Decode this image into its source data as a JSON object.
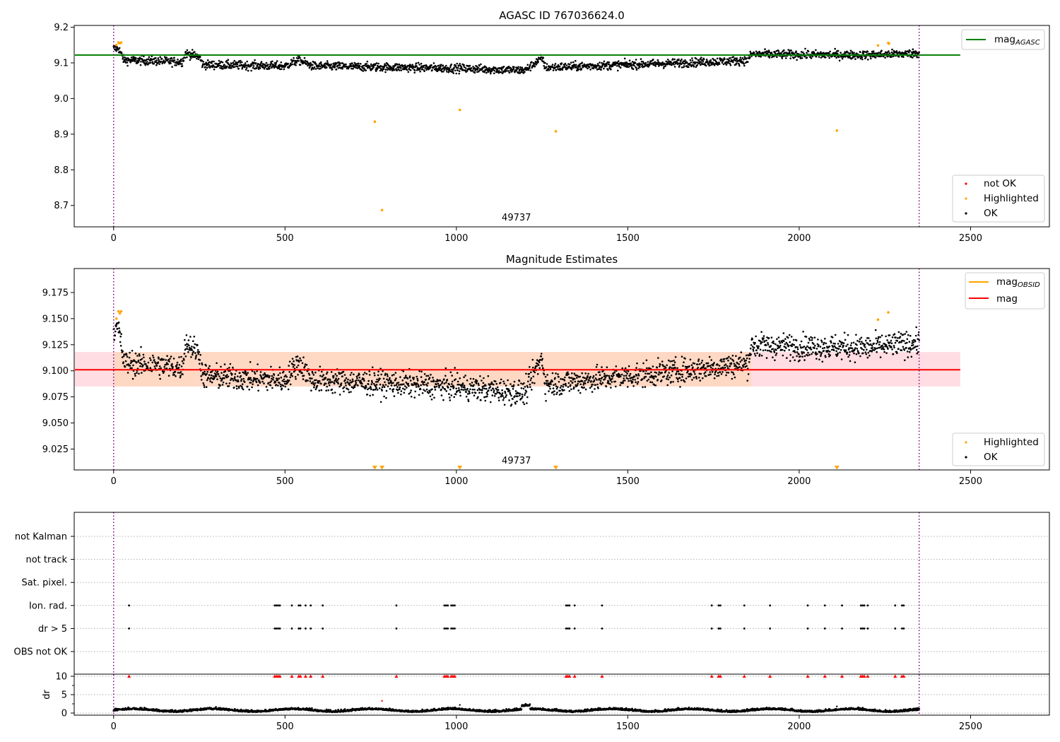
{
  "chart_data": [
    {
      "type": "scatter",
      "title": "AGASC ID 767036624.0",
      "xlim": [
        -115,
        2730
      ],
      "ylim": [
        8.64,
        9.205
      ],
      "xticks": [
        0,
        500,
        1000,
        1500,
        2000,
        2500
      ],
      "yticks": [
        8.7,
        8.8,
        8.9,
        9.0,
        9.1,
        9.2
      ],
      "ytick_labels": [
        "8.7",
        "8.8",
        "8.9",
        "9.0",
        "9.1",
        "9.2"
      ],
      "annotation": {
        "text": "49737",
        "x": 1175
      },
      "vlines": [
        0,
        2350
      ],
      "hline": {
        "name": "mag",
        "subscript": "AGASC",
        "y": 9.122,
        "x_range": [
          -115,
          2470
        ],
        "color": "#008000"
      },
      "ok_trend": {
        "segments": [
          [
            0,
            9.14
          ],
          [
            15,
            9.14
          ],
          [
            30,
            9.108
          ],
          [
            200,
            9.103
          ],
          [
            210,
            9.127
          ],
          [
            250,
            9.117
          ],
          [
            260,
            9.095
          ],
          [
            500,
            9.091
          ],
          [
            540,
            9.108
          ],
          [
            580,
            9.091
          ],
          [
            1000,
            9.085
          ],
          [
            1200,
            9.079
          ],
          [
            1230,
            9.1
          ],
          [
            1250,
            9.113
          ],
          [
            1260,
            9.087
          ],
          [
            1500,
            9.095
          ],
          [
            1600,
            9.098
          ],
          [
            1850,
            9.107
          ],
          [
            1860,
            9.124
          ],
          [
            2200,
            9.122
          ],
          [
            2350,
            9.127
          ]
        ],
        "noise": 0.011,
        "count": 2300
      },
      "highlighted": [
        [
          8,
          9.15
        ],
        [
          14,
          9.157
        ],
        [
          18,
          9.155
        ],
        [
          22,
          9.157
        ],
        [
          762,
          8.935
        ],
        [
          783,
          8.687
        ],
        [
          1010,
          8.968
        ],
        [
          1290,
          8.908
        ],
        [
          2110,
          8.91
        ],
        [
          2230,
          9.149
        ],
        [
          2260,
          9.156
        ],
        [
          2262,
          9.154
        ]
      ],
      "not_ok": [],
      "legend_lines": [
        {
          "label": "mag",
          "subscript": "AGASC",
          "color": "#008000"
        }
      ],
      "legend_points": [
        {
          "label": "not OK",
          "color": "#ff0000"
        },
        {
          "label": "Highlighted",
          "color": "#ffa500"
        },
        {
          "label": "OK",
          "color": "#000000"
        }
      ]
    },
    {
      "type": "scatter",
      "title": "Magnitude Estimates",
      "xlim": [
        -115,
        2730
      ],
      "ylim": [
        9.005,
        9.198
      ],
      "xticks": [
        0,
        500,
        1000,
        1500,
        2000,
        2500
      ],
      "yticks": [
        9.025,
        9.05,
        9.075,
        9.1,
        9.125,
        9.15,
        9.175
      ],
      "ytick_labels": [
        "9.025",
        "9.050",
        "9.075",
        "9.100",
        "9.125",
        "9.150",
        "9.175"
      ],
      "annotation": {
        "text": "49737",
        "x": 1175
      },
      "vlines": [
        0,
        2350
      ],
      "mag_line": {
        "y": 9.101,
        "x_range": [
          -115,
          2470
        ],
        "color": "#ff0000"
      },
      "band_outer": {
        "y_range": [
          9.085,
          9.118
        ],
        "x_range": [
          -115,
          2470
        ],
        "color": "#ffdde3"
      },
      "band_inner": {
        "y_range": [
          9.085,
          9.118
        ],
        "x_range": [
          0,
          1860
        ],
        "color": "#ffd8c4"
      },
      "mag_obsid_segments": [],
      "ok_trend": {
        "segments": [
          [
            0,
            9.14
          ],
          [
            15,
            9.14
          ],
          [
            30,
            9.108
          ],
          [
            200,
            9.103
          ],
          [
            210,
            9.127
          ],
          [
            250,
            9.117
          ],
          [
            260,
            9.095
          ],
          [
            500,
            9.091
          ],
          [
            540,
            9.108
          ],
          [
            580,
            9.091
          ],
          [
            1000,
            9.085
          ],
          [
            1200,
            9.079
          ],
          [
            1230,
            9.1
          ],
          [
            1250,
            9.113
          ],
          [
            1260,
            9.087
          ],
          [
            1500,
            9.095
          ],
          [
            1600,
            9.098
          ],
          [
            1850,
            9.107
          ],
          [
            1860,
            9.124
          ],
          [
            2200,
            9.122
          ],
          [
            2350,
            9.127
          ]
        ],
        "noise": 0.011,
        "count": 2300
      },
      "highlighted": [
        [
          8,
          9.15
        ],
        [
          14,
          9.157
        ],
        [
          18,
          9.155
        ],
        [
          22,
          9.157
        ],
        [
          2230,
          9.149
        ],
        [
          2260,
          9.156
        ]
      ],
      "off_scale_low": [
        762,
        783,
        1010,
        1290,
        2110
      ],
      "legend_lines": [
        {
          "label": "mag",
          "subscript": "OBSID",
          "color": "#ffa500"
        },
        {
          "label": "mag",
          "subscript": "",
          "color": "#ff0000"
        }
      ],
      "legend_points": [
        {
          "label": "Highlighted",
          "color": "#ffa500"
        },
        {
          "label": "OK",
          "color": "#000000"
        }
      ]
    },
    {
      "type": "scatter",
      "title": "",
      "xlim": [
        -115,
        2730
      ],
      "categories": [
        "OBS not OK",
        "dr > 5",
        "Ion. rad.",
        "Sat. pixel.",
        "not track",
        "not Kalman"
      ],
      "flag_x": [
        45,
        470,
        475,
        480,
        485,
        520,
        540,
        545,
        560,
        575,
        610,
        825,
        965,
        970,
        975,
        985,
        990,
        995,
        1320,
        1325,
        1330,
        1345,
        1425,
        1745,
        1765,
        1770,
        1840,
        1915,
        2025,
        2075,
        2125,
        2180,
        2185,
        2190,
        2200,
        2280,
        2300,
        2305
      ],
      "flag_rows": [
        "dr > 5",
        "Ion. rad."
      ],
      "vlines": [
        0,
        2350
      ],
      "dr": {
        "ylabel": "dr",
        "ylim": [
          -1,
          11
        ],
        "yticks": [
          0,
          5,
          10
        ],
        "ytick_labels": [
          "0",
          "5",
          "10"
        ],
        "max_marker_y": 10,
        "outliers": [
          [
            783,
            3.3
          ],
          [
            1010,
            2.2
          ],
          [
            2110,
            1.8
          ]
        ],
        "count": 2300
      }
    }
  ]
}
